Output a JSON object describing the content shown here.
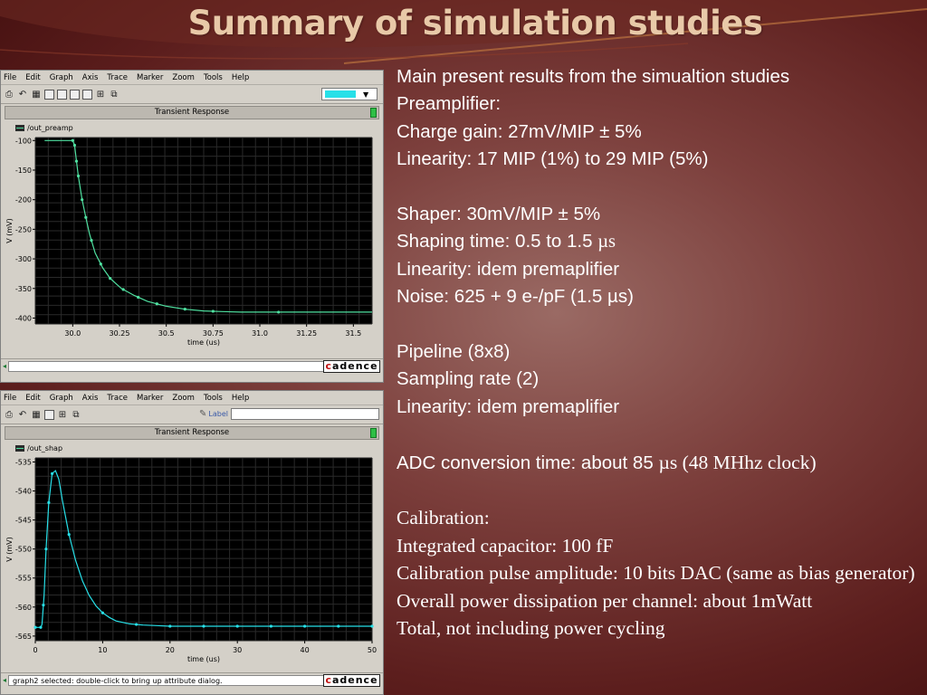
{
  "slide": {
    "title": "Summary of simulation studies"
  },
  "colors": {
    "bg_dark": "#5c1e1d",
    "title": "#e8c9a8",
    "trace": "#27e0e8",
    "trace_preamp": "#4fe0a0",
    "plot_bg": "#000000",
    "grid": "#2a2a2a"
  },
  "windows": [
    {
      "menu": [
        "File",
        "Edit",
        "Graph",
        "Axis",
        "Trace",
        "Marker",
        "Zoom",
        "Tools",
        "Help"
      ],
      "toolbar_icons": [
        "print-icon",
        "undo-icon",
        "grid-icon",
        "window-icon",
        "window-icon",
        "window-icon",
        "window-icon",
        "zoom-fit-icon",
        "duplicate-icon"
      ],
      "graph_title": "Transient Response",
      "legend": "/out_preamp",
      "status": "",
      "logo": "cadence"
    },
    {
      "menu": [
        "File",
        "Edit",
        "Graph",
        "Axis",
        "Trace",
        "Marker",
        "Zoom",
        "Tools",
        "Help"
      ],
      "toolbar_icons": [
        "print-icon",
        "undo-icon",
        "grid-icon",
        "window-icon",
        "zoom-fit-icon",
        "duplicate-icon"
      ],
      "label_field": "Label",
      "graph_title": "Transient Response",
      "legend": "/out_shap",
      "status": "graph2 selected: double-click to bring up attribute dialog.",
      "logo": "cadence"
    }
  ],
  "chart_data": [
    {
      "type": "line",
      "title": "Transient Response",
      "xlabel": "time (us)",
      "ylabel": "V (mV)",
      "xlim": [
        29.8,
        31.6
      ],
      "ylim": [
        -410,
        -95
      ],
      "xticks": [
        "30.0",
        "30.25",
        "30.5",
        "30.75",
        "31.0",
        "31.25",
        "31.5"
      ],
      "xtick_values": [
        30.0,
        30.25,
        30.5,
        30.75,
        31.0,
        31.25,
        31.5
      ],
      "yticks": [
        "-100",
        "-150",
        "-200",
        "-250",
        "-300",
        "-350",
        "-400"
      ],
      "ytick_values": [
        -100,
        -150,
        -200,
        -250,
        -300,
        -350,
        -400
      ],
      "series": [
        {
          "name": "/out_preamp",
          "x": [
            29.85,
            29.95,
            30.0,
            30.01,
            30.02,
            30.03,
            30.04,
            30.05,
            30.07,
            30.09,
            30.12,
            30.16,
            30.2,
            30.26,
            30.33,
            30.4,
            30.5,
            30.6,
            30.7,
            30.8,
            30.9,
            31.0,
            31.1,
            31.2,
            31.4,
            31.6
          ],
          "y": [
            -100,
            -100,
            -100,
            -108,
            -135,
            -160,
            -180,
            -200,
            -230,
            -258,
            -290,
            -315,
            -333,
            -350,
            -362,
            -372,
            -380,
            -385,
            -388,
            -389,
            -390,
            -390,
            -390,
            -390,
            -390,
            -390
          ],
          "markers_x": [
            30.0,
            30.01,
            30.02,
            30.03,
            30.05,
            30.07,
            30.1,
            30.15,
            30.2,
            30.27,
            30.35,
            30.45,
            30.6,
            30.75,
            31.1
          ]
        }
      ]
    },
    {
      "type": "line",
      "title": "Transient Response",
      "xlabel": "time (us)",
      "ylabel": "V (mV)",
      "xlim": [
        0,
        50
      ],
      "ylim": [
        -565.8,
        -534.3
      ],
      "xticks": [
        "0",
        "10",
        "20",
        "30",
        "40",
        "50"
      ],
      "xtick_values": [
        0,
        10,
        20,
        30,
        40,
        50
      ],
      "yticks": [
        "-535",
        "-540",
        "-545",
        "-550",
        "-555",
        "-560",
        "-565"
      ],
      "ytick_values": [
        -535,
        -540,
        -545,
        -550,
        -555,
        -560,
        -565
      ],
      "series": [
        {
          "name": "/out_shap",
          "x": [
            0,
            0.8,
            1.0,
            1.3,
            1.6,
            2.0,
            2.5,
            3.0,
            3.5,
            4.0,
            5.0,
            6.0,
            7.0,
            8.0,
            9.0,
            10.0,
            11.0,
            12.0,
            14.0,
            16.0,
            18.0,
            20.0,
            25.0,
            30.0,
            40.0,
            50.0
          ],
          "y": [
            -563.5,
            -563.5,
            -563,
            -558,
            -550,
            -542,
            -537,
            -536.5,
            -538,
            -541.5,
            -547.5,
            -552,
            -555.5,
            -558,
            -559.8,
            -561,
            -561.8,
            -562.4,
            -562.9,
            -563.1,
            -563.2,
            -563.3,
            -563.3,
            -563.3,
            -563.3,
            -563.3
          ],
          "markers_x": [
            0,
            0.8,
            1.2,
            1.6,
            2.0,
            2.5,
            5.0,
            10.0,
            15.0,
            20.0,
            25.0,
            30.0,
            35.0,
            40.0,
            45.0,
            50.0
          ]
        }
      ]
    }
  ],
  "notes": [
    "Main present results from the simualtion studies",
    "Preamplifier:",
    "Charge gain: 27mV/MIP ± 5%",
    "Linearity: 17 MIP (1%) to 29 MIP (5%)",
    "",
    "Shaper: 30mV/MIP ± 5%",
    "Shaping time: 0.5 to 1.5 ",
    "µs",
    "Linearity: idem premaplifier",
    "Noise: 625 + 9 e-/pF (1.5 µs)",
    "",
    "Pipeline (8x8)",
    "Sampling rate (2)",
    "Linearity: idem premaplifier",
    "",
    "ADC conversion time: about 85 ",
    "µs (48 MHhz clock)",
    "",
    "Calibration:",
    "Integrated capacitor: 100 fF",
    "Calibration pulse amplitude: 10 bits DAC (same as bias generator)",
    "Overall power dissipation per channel: about 1mWatt",
    "Total, not including power cycling"
  ]
}
